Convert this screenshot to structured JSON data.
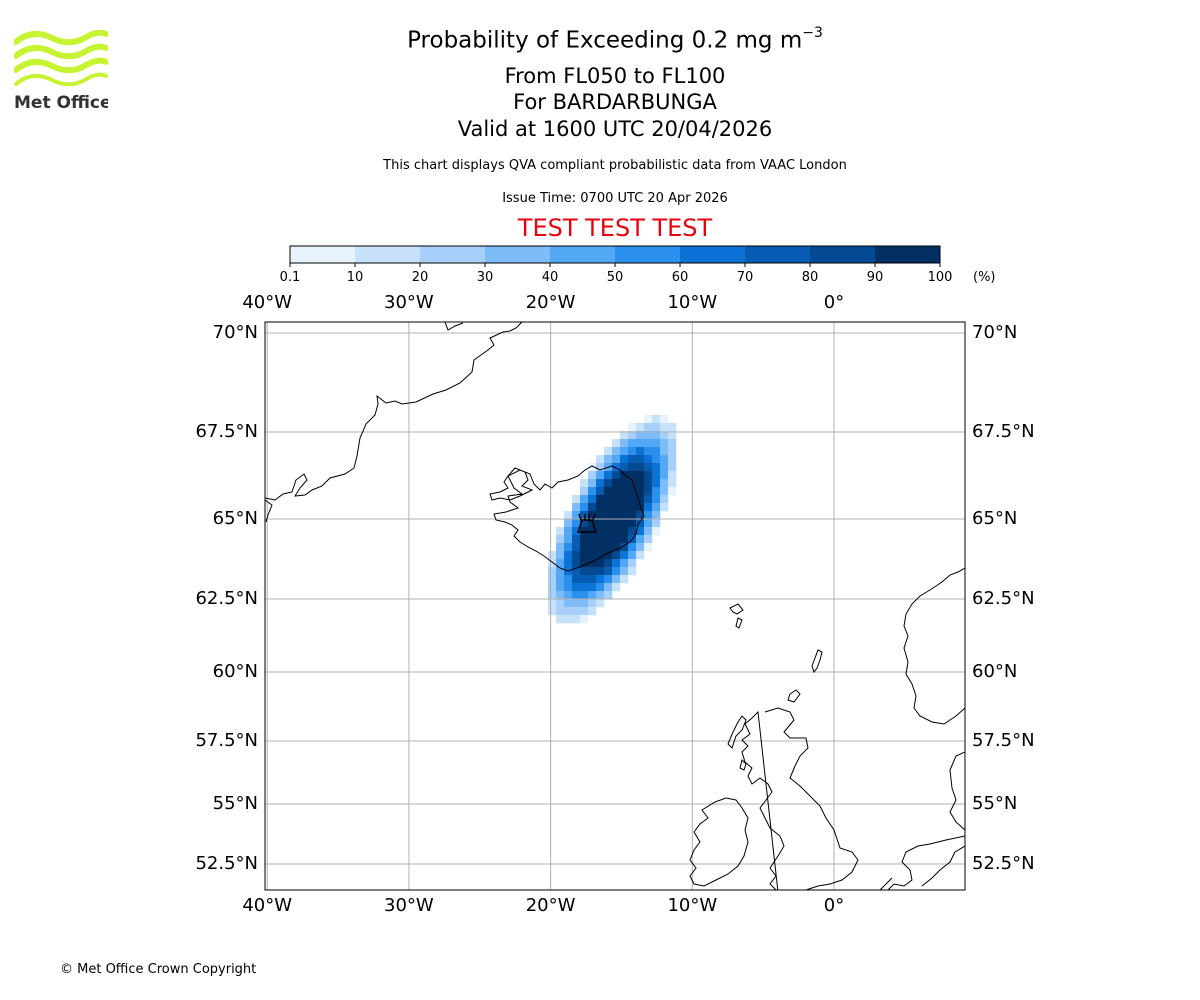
{
  "logo": {
    "text": "Met Office",
    "colors": {
      "waves": "#c6f432",
      "text": "#333333"
    }
  },
  "title": {
    "main_prefix": "Probability of Exceeding 0.2 mg m",
    "main_superscript": "−3",
    "levels": "From FL050 to FL100",
    "volcano": "For BARDARBUNGA",
    "valid": "Valid at 1600 UTC 20/04/2026"
  },
  "subtitle": {
    "description": "This chart displays QVA compliant probabilistic data from VAAC London",
    "issue_time": "Issue Time: 0700 UTC 20 Apr 2026"
  },
  "test_banner": "TEST TEST TEST",
  "colorbar": {
    "unit": "(%)",
    "bounds": [
      "0.1",
      "10",
      "20",
      "30",
      "40",
      "50",
      "60",
      "70",
      "80",
      "90",
      "100"
    ],
    "colors": [
      "#e8f2fd",
      "#c8e1fb",
      "#a6cffa",
      "#7dbcf7",
      "#52a8f5",
      "#2a90ee",
      "#0b73d6",
      "#065cb3",
      "#044a92",
      "#022f64"
    ]
  },
  "map": {
    "lon_ticks": [
      "40°W",
      "30°W",
      "20°W",
      "10°W",
      "0°"
    ],
    "lat_ticks": [
      "70°N",
      "67.5°N",
      "65°N",
      "62.5°N",
      "60°N",
      "57.5°N",
      "55°N",
      "52.5°N"
    ],
    "volcano_symbol": "volcano-icon",
    "coastline_color": "#000000",
    "grid_color": "#b0b0b0"
  },
  "copyright": "© Met Office Crown Copyright"
}
